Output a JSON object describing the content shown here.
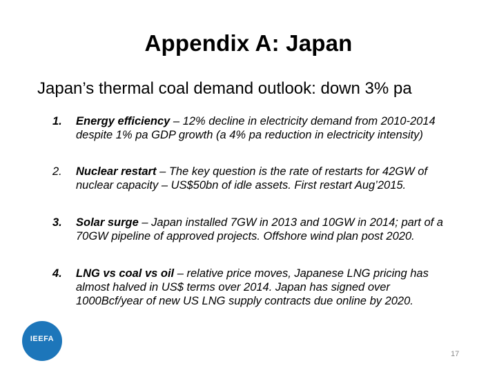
{
  "slide": {
    "title": "Appendix A:  Japan",
    "subtitle": "Japan’s thermal coal demand outlook: down 3% pa",
    "items": [
      {
        "number": "1.",
        "lead": "Energy efficiency",
        "line1": " – 12% decline in electricity demand from 2010-2014",
        "line2": "despite 1% pa GDP growth (a 4% pa reduction in electricity intensity)",
        "line3": ""
      },
      {
        "number": "2.",
        "lead": " Nuclear restart",
        "line1": " – The key question is the rate of restarts for 42GW of",
        "line2": "nuclear capacity – US$50bn of idle assets. First restart Aug’2015.",
        "line3": ""
      },
      {
        "number": "3.",
        "lead": "Solar surge",
        "line1": " – Japan installed 7GW in 2013 and 10GW in 2014; part of a",
        "line2": "70GW pipeline of approved projects. Offshore wind plan post 2020.",
        "line3": ""
      },
      {
        "number": "4.",
        "lead": "LNG vs coal vs oil",
        "line1": " – relative price moves, Japanese LNG pricing has",
        "line2": "almost halved in US$ terms over 2014. Japan has signed over",
        "line3": "1000Bcf/year of new US LNG supply contracts due online by 2020."
      }
    ],
    "logo_text": "IEEFA",
    "page_number": "17"
  },
  "colors": {
    "logo": "#1d76ba",
    "page_number": "#8a8a8a"
  }
}
